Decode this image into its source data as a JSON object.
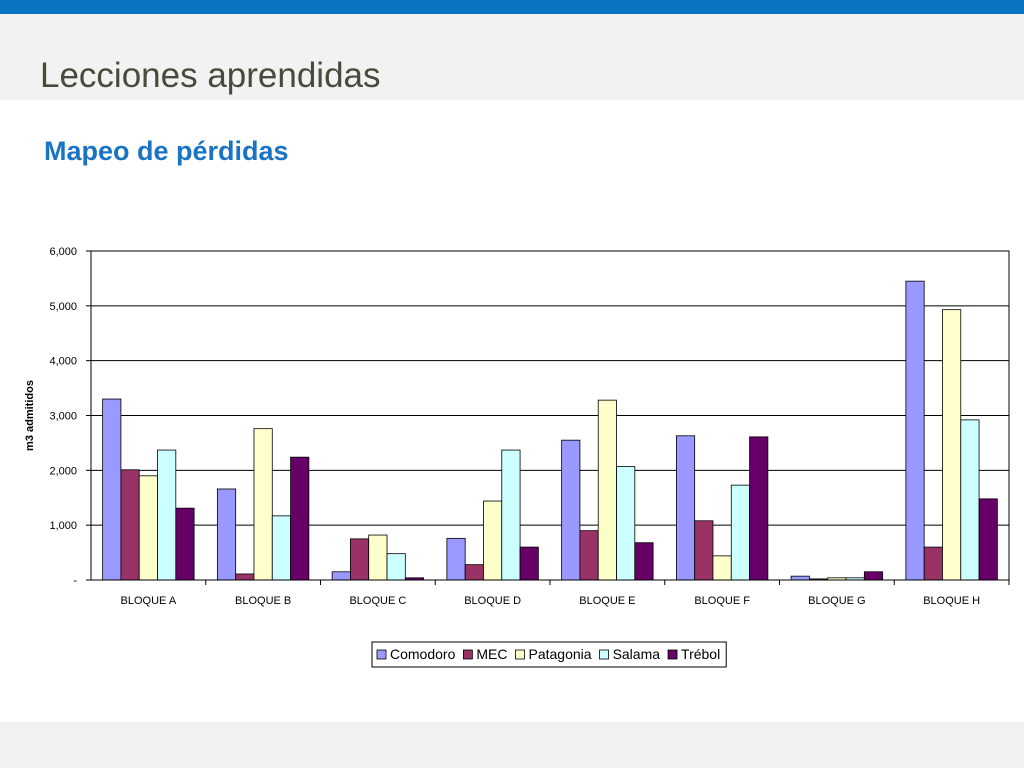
{
  "slide": {
    "title": "Lecciones aprendidas",
    "subtitle": "Mapeo de pérdidas"
  },
  "colors": {
    "top_bar": "#0a74c4",
    "subtitle": "#1a74c6",
    "title": "#4a4a3c"
  },
  "chart_data": {
    "type": "bar",
    "ylabel": "m3 admitidos",
    "xlabel": "",
    "ylim": [
      0,
      6000
    ],
    "yticks": [
      {
        "value": 0,
        "label": "-"
      },
      {
        "value": 1000,
        "label": "1,000"
      },
      {
        "value": 2000,
        "label": "2,000"
      },
      {
        "value": 3000,
        "label": "3,000"
      },
      {
        "value": 4000,
        "label": "4,000"
      },
      {
        "value": 5000,
        "label": "5,000"
      },
      {
        "value": 6000,
        "label": "6,000"
      }
    ],
    "grid": true,
    "legend_position": "bottom",
    "categories": [
      "BLOQUE A",
      "BLOQUE B",
      "BLOQUE C",
      "BLOQUE D",
      "BLOQUE E",
      "BLOQUE F",
      "BLOQUE G",
      "BLOQUE H"
    ],
    "series": [
      {
        "name": "Comodoro",
        "color": "#9999ff",
        "values": [
          3300,
          1660,
          150,
          760,
          2550,
          2630,
          70,
          5450
        ]
      },
      {
        "name": "MEC",
        "color": "#993366",
        "values": [
          2010,
          110,
          750,
          280,
          900,
          1080,
          20,
          600
        ]
      },
      {
        "name": "Patagonia",
        "color": "#ffffcc",
        "values": [
          1900,
          2760,
          820,
          1440,
          3280,
          440,
          40,
          4930
        ]
      },
      {
        "name": "Salama",
        "color": "#ccffff",
        "values": [
          2370,
          1170,
          480,
          2370,
          2070,
          1730,
          40,
          2920
        ]
      },
      {
        "name": "Trébol",
        "color": "#660066",
        "values": [
          1310,
          2240,
          40,
          600,
          680,
          2610,
          150,
          1480
        ]
      }
    ]
  }
}
